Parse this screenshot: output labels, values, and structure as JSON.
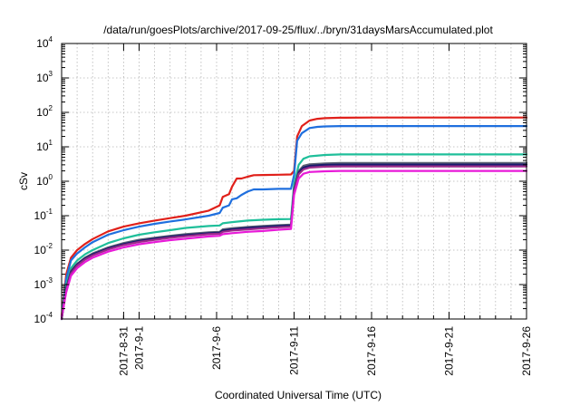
{
  "chart_data": {
    "type": "line",
    "title": "/data/run/goesPlots/archive/2017-09-25/flux/../bryn/31daysMarsAccumulated.plot",
    "xlabel": "Coordinated Universal Time (UTC)",
    "ylabel": "cSv",
    "x_unit": "days (2017-08-27 at left edge to 2017-09-26 at right edge)",
    "xlim": [
      0,
      30
    ],
    "ylim": [
      0.0001,
      10000
    ],
    "yscale": "log",
    "grid": true,
    "legend": "none",
    "x_ticks": [
      {
        "value": 4,
        "label": "2017-8-31"
      },
      {
        "value": 5,
        "label": "2017-9-1"
      },
      {
        "value": 10,
        "label": "2017-9-6"
      },
      {
        "value": 15,
        "label": "2017-9-11"
      },
      {
        "value": 20,
        "label": "2017-9-16"
      },
      {
        "value": 25,
        "label": "2017-9-21"
      },
      {
        "value": 30,
        "label": "2017-9-26"
      }
    ],
    "y_ticks": [
      {
        "value": 0.0001,
        "base": "10",
        "exp": "-4"
      },
      {
        "value": 0.001,
        "base": "10",
        "exp": "-3"
      },
      {
        "value": 0.01,
        "base": "10",
        "exp": "-2"
      },
      {
        "value": 0.1,
        "base": "10",
        "exp": "-1"
      },
      {
        "value": 1,
        "base": "10",
        "exp": "0"
      },
      {
        "value": 10,
        "base": "10",
        "exp": "1"
      },
      {
        "value": 100,
        "base": "10",
        "exp": "2"
      },
      {
        "value": 1000,
        "base": "10",
        "exp": "3"
      },
      {
        "value": 10000,
        "base": "10",
        "exp": "4"
      }
    ],
    "series": [
      {
        "color": "#e0201a",
        "x": [
          0,
          0.3,
          0.6,
          1,
          1.5,
          2,
          3,
          4,
          5,
          6,
          7,
          8,
          9.5,
          10.2,
          10.4,
          10.8,
          11,
          11.3,
          11.6,
          12,
          12.4,
          13,
          14,
          14.8,
          15,
          15.2,
          15.5,
          16,
          16.5,
          17,
          18,
          20,
          25,
          30
        ],
        "y": [
          0.00012,
          0.002,
          0.006,
          0.01,
          0.015,
          0.021,
          0.035,
          0.048,
          0.06,
          0.072,
          0.085,
          0.1,
          0.14,
          0.2,
          0.35,
          0.42,
          0.7,
          1.2,
          1.2,
          1.35,
          1.5,
          1.52,
          1.55,
          1.58,
          2,
          20,
          40,
          58,
          65,
          68,
          70,
          71,
          71,
          71
        ]
      },
      {
        "color": "#1f6fde",
        "x": [
          0,
          0.3,
          0.6,
          1,
          1.5,
          2,
          3,
          4,
          5,
          6,
          7,
          8,
          9.5,
          10.2,
          10.4,
          10.8,
          11,
          11.3,
          11.6,
          12,
          12.4,
          13,
          14,
          14.8,
          15,
          15.2,
          15.5,
          16,
          16.5,
          17,
          18,
          20,
          25,
          30
        ],
        "y": [
          0.0001,
          0.0015,
          0.005,
          0.008,
          0.012,
          0.017,
          0.028,
          0.038,
          0.048,
          0.058,
          0.068,
          0.078,
          0.1,
          0.12,
          0.17,
          0.2,
          0.3,
          0.32,
          0.4,
          0.5,
          0.58,
          0.58,
          0.6,
          0.6,
          1.5,
          15,
          25,
          35,
          38,
          39,
          40,
          40,
          40,
          40
        ]
      },
      {
        "color": "#1fbf9a",
        "x": [
          0,
          0.3,
          0.6,
          1,
          1.5,
          2,
          3,
          4,
          5,
          6,
          7,
          8,
          9.5,
          10.2,
          10.4,
          11,
          12,
          13,
          14,
          14.8,
          15,
          15.3,
          15.6,
          16,
          17,
          18,
          20,
          25,
          30
        ],
        "y": [
          0.0001,
          0.001,
          0.003,
          0.005,
          0.0075,
          0.01,
          0.016,
          0.022,
          0.028,
          0.033,
          0.038,
          0.044,
          0.05,
          0.052,
          0.06,
          0.065,
          0.072,
          0.076,
          0.079,
          0.08,
          0.8,
          3,
          4.5,
          5.3,
          5.8,
          6,
          6,
          6,
          6
        ]
      },
      {
        "color": "#5a6072",
        "x": [
          0,
          0.3,
          0.6,
          1,
          1.5,
          2,
          3,
          4,
          5,
          6,
          7,
          8,
          9.5,
          10.2,
          10.4,
          11,
          12,
          13,
          14,
          14.8,
          15,
          15.3,
          15.6,
          16,
          17,
          18,
          20,
          25,
          30
        ],
        "y": [
          0.0001,
          0.0008,
          0.0025,
          0.004,
          0.006,
          0.008,
          0.012,
          0.016,
          0.02,
          0.023,
          0.026,
          0.029,
          0.033,
          0.034,
          0.04,
          0.043,
          0.047,
          0.05,
          0.053,
          0.055,
          0.6,
          2,
          2.8,
          3.1,
          3.3,
          3.4,
          3.4,
          3.4,
          3.4
        ]
      },
      {
        "color": "#1a1a6e",
        "x": [
          0,
          0.3,
          0.6,
          1,
          1.5,
          2,
          3,
          4,
          5,
          6,
          7,
          8,
          9.5,
          10.2,
          10.4,
          11,
          12,
          13,
          14,
          14.8,
          15,
          15.3,
          15.6,
          16,
          17,
          18,
          20,
          25,
          30
        ],
        "y": [
          0.0001,
          0.00075,
          0.0023,
          0.0038,
          0.0057,
          0.0075,
          0.0112,
          0.015,
          0.0185,
          0.0215,
          0.0245,
          0.0272,
          0.031,
          0.032,
          0.037,
          0.04,
          0.044,
          0.047,
          0.05,
          0.052,
          0.55,
          1.8,
          2.5,
          2.8,
          3,
          3.05,
          3.05,
          3.05,
          3.05
        ]
      },
      {
        "color": "#9b2a8a",
        "x": [
          0,
          0.3,
          0.6,
          1,
          1.5,
          2,
          3,
          4,
          5,
          6,
          7,
          8,
          9.5,
          10.2,
          10.4,
          11,
          12,
          13,
          14,
          14.8,
          15,
          15.3,
          15.6,
          16,
          17,
          18,
          20,
          25,
          30
        ],
        "y": [
          0.0001,
          0.0007,
          0.0021,
          0.0035,
          0.0053,
          0.007,
          0.0105,
          0.014,
          0.0172,
          0.02,
          0.0228,
          0.0253,
          0.029,
          0.03,
          0.034,
          0.037,
          0.04,
          0.043,
          0.046,
          0.048,
          0.5,
          1.6,
          2.2,
          2.5,
          2.65,
          2.7,
          2.7,
          2.7,
          2.7
        ]
      },
      {
        "color": "#e81ad8",
        "x": [
          0,
          0.3,
          0.6,
          1,
          1.5,
          2,
          3,
          4,
          5,
          6,
          7,
          8,
          9.5,
          10.2,
          10.4,
          11,
          12,
          13,
          14,
          14.8,
          15,
          15.3,
          15.6,
          16,
          17,
          18,
          20,
          25,
          30
        ],
        "y": [
          0.00012,
          0.0006,
          0.0018,
          0.003,
          0.0045,
          0.006,
          0.009,
          0.012,
          0.0148,
          0.017,
          0.0195,
          0.0215,
          0.025,
          0.026,
          0.029,
          0.031,
          0.034,
          0.036,
          0.039,
          0.041,
          0.4,
          1.2,
          1.65,
          1.85,
          1.95,
          2,
          2,
          2,
          2
        ]
      }
    ]
  }
}
